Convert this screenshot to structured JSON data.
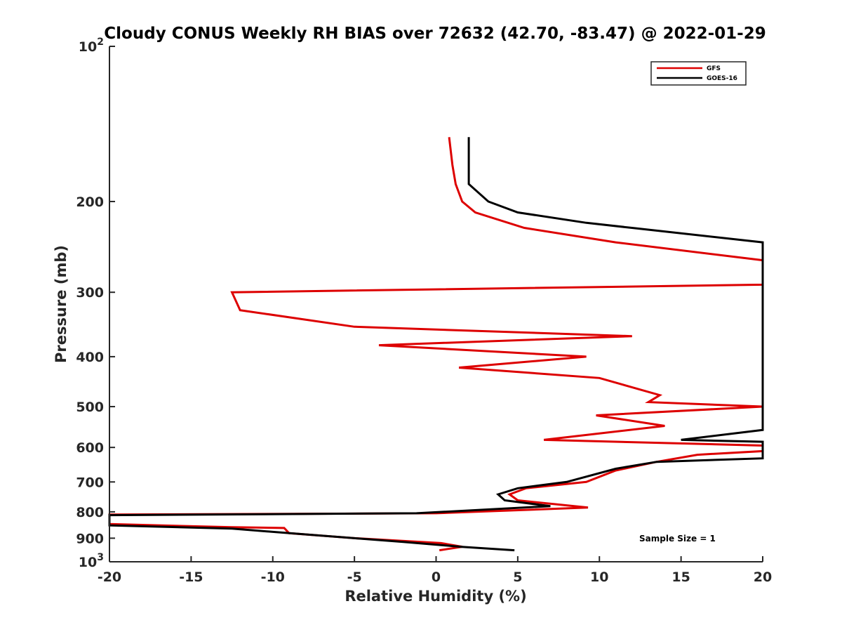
{
  "chart_data": {
    "type": "line",
    "title": "Cloudy CONUS Weekly RH BIAS over 72632 (42.70, -83.47) @ 2022-01-29",
    "xlabel": "Relative Humidity (%)",
    "ylabel": "Pressure (mb)",
    "xlim": [
      -20,
      20
    ],
    "ylim": [
      100,
      1000
    ],
    "yscale": "log",
    "y_reversed": true,
    "x_ticks": [
      -20,
      -15,
      -10,
      -5,
      0,
      5,
      10,
      15,
      20
    ],
    "x_tick_labels": [
      "-20",
      "-15",
      "-10",
      "-5",
      "0",
      "5",
      "10",
      "15",
      "20"
    ],
    "y_ticks": [
      100,
      200,
      300,
      400,
      500,
      600,
      700,
      800,
      900,
      1000
    ],
    "y_tick_labels": [
      {
        "base": "10",
        "exp": "2"
      },
      {
        "base": "200",
        "exp": ""
      },
      {
        "base": "300",
        "exp": ""
      },
      {
        "base": "400",
        "exp": ""
      },
      {
        "base": "500",
        "exp": ""
      },
      {
        "base": "600",
        "exp": ""
      },
      {
        "base": "700",
        "exp": ""
      },
      {
        "base": "800",
        "exp": ""
      },
      {
        "base": "900",
        "exp": ""
      },
      {
        "base": "10",
        "exp": "3"
      }
    ],
    "grid": false,
    "legend_position": "top-right",
    "annotation": "Sample Size = 1",
    "series": [
      {
        "name": "GFS",
        "color": "#dd0000",
        "points": [
          [
            0.8,
            150
          ],
          [
            1.0,
            170
          ],
          [
            1.2,
            185
          ],
          [
            1.6,
            200
          ],
          [
            2.4,
            210
          ],
          [
            5.4,
            225
          ],
          [
            11.0,
            240
          ],
          [
            20.0,
            260
          ],
          [
            20.0,
            290
          ],
          [
            -12.5,
            300
          ],
          [
            -12.0,
            325
          ],
          [
            -5.0,
            350
          ],
          [
            12.0,
            365
          ],
          [
            -3.5,
            380
          ],
          [
            9.2,
            400
          ],
          [
            1.4,
            420
          ],
          [
            10.0,
            440
          ],
          [
            13.7,
            475
          ],
          [
            13.0,
            490
          ],
          [
            20.0,
            500
          ],
          [
            9.8,
            520
          ],
          [
            14.0,
            545
          ],
          [
            6.6,
            580
          ],
          [
            20.0,
            595
          ],
          [
            20.0,
            610
          ],
          [
            16.0,
            620
          ],
          [
            13.5,
            640
          ],
          [
            11.0,
            665
          ],
          [
            9.2,
            700
          ],
          [
            5.5,
            720
          ],
          [
            4.5,
            740
          ],
          [
            5.0,
            760
          ],
          [
            9.3,
            785
          ],
          [
            0.0,
            805
          ],
          [
            -20.0,
            810
          ],
          [
            -20.0,
            845
          ],
          [
            -12.5,
            857
          ],
          [
            -9.3,
            860
          ],
          [
            -9.0,
            880
          ],
          [
            -5.0,
            900
          ],
          [
            0.3,
            920
          ],
          [
            1.6,
            935
          ],
          [
            0.2,
            950
          ]
        ]
      },
      {
        "name": "GOES-16",
        "color": "#000000",
        "points": [
          [
            2.0,
            150
          ],
          [
            2.0,
            185
          ],
          [
            3.2,
            200
          ],
          [
            5.0,
            210
          ],
          [
            9.2,
            220
          ],
          [
            12.0,
            225
          ],
          [
            20.0,
            240
          ],
          [
            20.0,
            555
          ],
          [
            15.0,
            580
          ],
          [
            20.0,
            585
          ],
          [
            20.0,
            630
          ],
          [
            13.5,
            640
          ],
          [
            11.0,
            660
          ],
          [
            8.0,
            700
          ],
          [
            5.0,
            720
          ],
          [
            3.8,
            740
          ],
          [
            4.2,
            760
          ],
          [
            7.0,
            780
          ],
          [
            -1.2,
            805
          ],
          [
            -20.0,
            812
          ],
          [
            -20.0,
            850
          ],
          [
            -12.5,
            862
          ],
          [
            -10.0,
            875
          ],
          [
            -5.0,
            900
          ],
          [
            -2.0,
            915
          ],
          [
            1.5,
            935
          ],
          [
            4.8,
            950
          ]
        ]
      }
    ]
  }
}
